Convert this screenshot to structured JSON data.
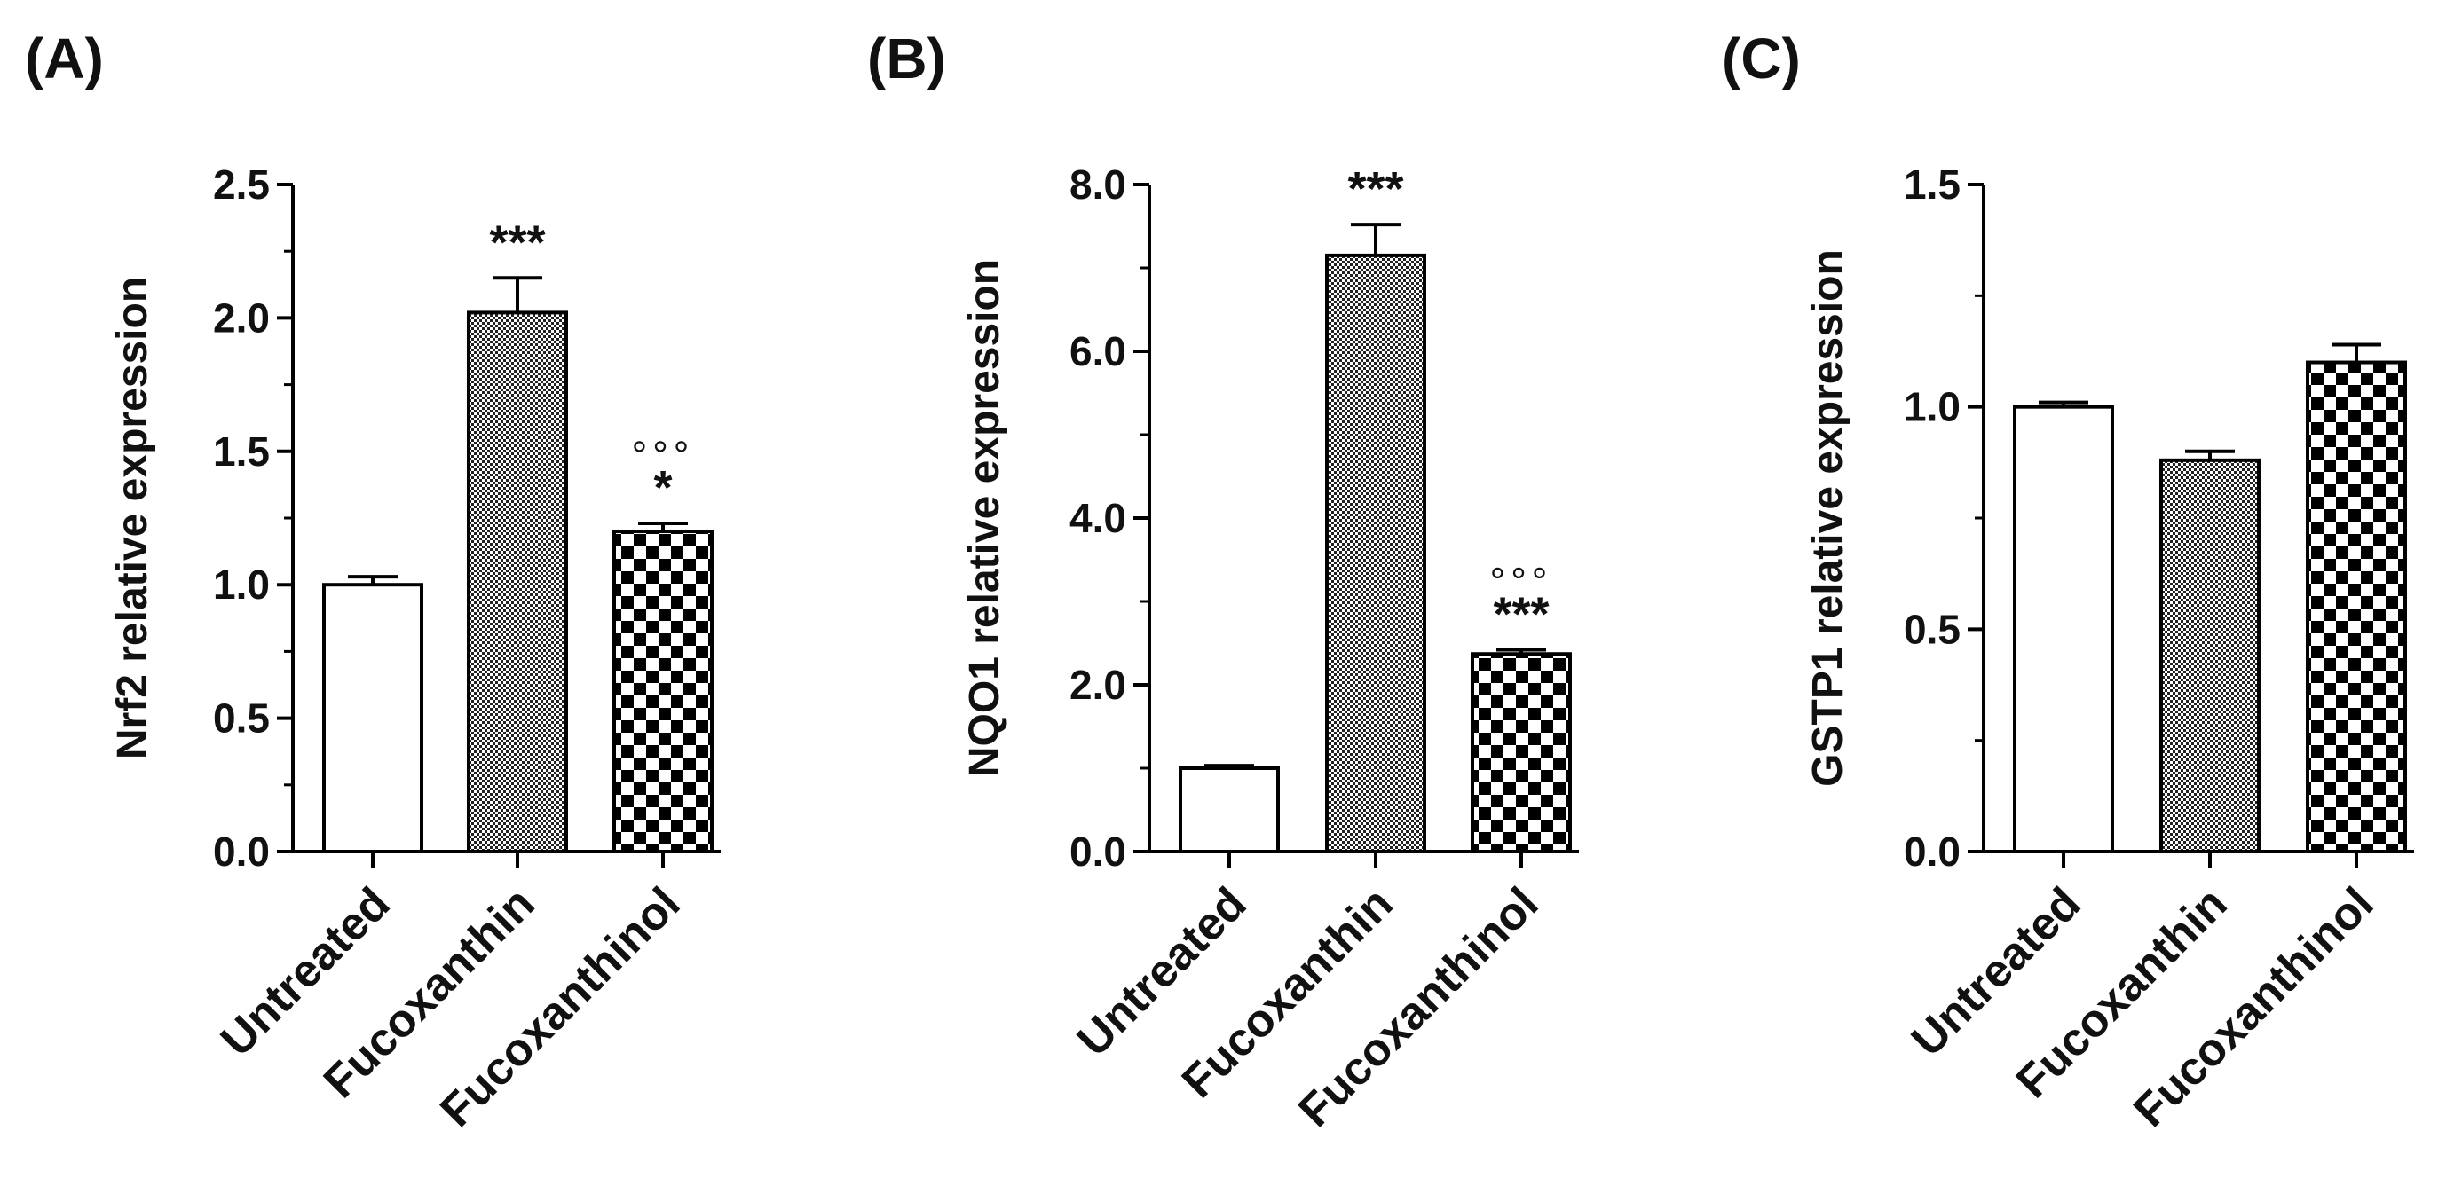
{
  "chart_data": [
    {
      "type": "bar",
      "panel_label": "(A)",
      "title": "",
      "xlabel": "",
      "ylabel": "Nrf2 relative expression",
      "ylim": [
        0,
        2.5
      ],
      "yticks": [
        0.0,
        0.5,
        1.0,
        1.5,
        2.0,
        2.5
      ],
      "ytick_labels": [
        "0.0",
        "0.5",
        "1.0",
        "1.5",
        "2.0",
        "2.5"
      ],
      "categories": [
        "Untreated",
        "Fucoxanthin",
        "Fucoxanthinol"
      ],
      "values": [
        1.0,
        2.02,
        1.2
      ],
      "errors": [
        0.03,
        0.13,
        0.03
      ],
      "patterns": [
        "none",
        "fine",
        "checker"
      ],
      "annotations": [
        {
          "category": "Fucoxanthin",
          "lines": [
            "***"
          ]
        },
        {
          "category": "Fucoxanthinol",
          "lines": [
            "°°°",
            "*"
          ]
        }
      ]
    },
    {
      "type": "bar",
      "panel_label": "(B)",
      "title": "",
      "xlabel": "",
      "ylabel": "NQO1 relative expression",
      "ylim": [
        0,
        8.0
      ],
      "yticks": [
        0.0,
        2.0,
        4.0,
        6.0,
        8.0
      ],
      "ytick_labels": [
        "0.0",
        "2.0",
        "4.0",
        "6.0",
        "8.0"
      ],
      "categories": [
        "Untreated",
        "Fucoxanthin",
        "Fucoxanthinol"
      ],
      "values": [
        1.0,
        7.15,
        2.37
      ],
      "errors": [
        0.03,
        0.37,
        0.05
      ],
      "patterns": [
        "none",
        "fine",
        "checker"
      ],
      "annotations": [
        {
          "category": "Fucoxanthin",
          "lines": [
            "***"
          ]
        },
        {
          "category": "Fucoxanthinol",
          "lines": [
            "°°°",
            "***"
          ]
        }
      ]
    },
    {
      "type": "bar",
      "panel_label": "(C)",
      "title": "",
      "xlabel": "",
      "ylabel": "GSTP1 relative expression",
      "ylim": [
        0,
        1.5
      ],
      "yticks": [
        0.0,
        0.5,
        1.0,
        1.5
      ],
      "ytick_labels": [
        "0.0",
        "0.5",
        "1.0",
        "1.5"
      ],
      "categories": [
        "Untreated",
        "Fucoxanthin",
        "Fucoxanthinol"
      ],
      "values": [
        1.0,
        0.88,
        1.1
      ],
      "errors": [
        0.01,
        0.02,
        0.04
      ],
      "patterns": [
        "none",
        "fine",
        "checker"
      ],
      "annotations": []
    }
  ]
}
